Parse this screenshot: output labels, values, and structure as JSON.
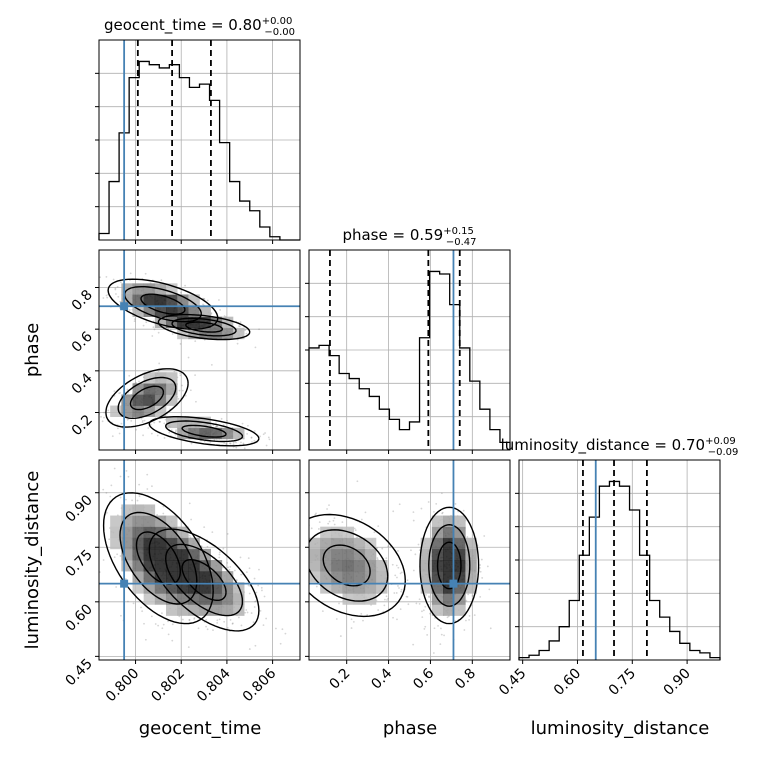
{
  "chart_data": {
    "type": "corner",
    "parameters": [
      "geocent_time",
      "phase",
      "luminosity_distance"
    ],
    "truths": {
      "geocent_time": 0.7995,
      "phase": 0.71,
      "luminosity_distance": 0.65
    },
    "colors": {
      "truth": "#4682b4",
      "hist": "#000000",
      "grid": "#b0b0b0",
      "scatter": "#888888"
    },
    "grid": true,
    "diagonal": [
      {
        "param": "geocent_time",
        "title_main": "geocent_time = 0.80",
        "title_sup": "+0.00",
        "title_sub": "−0.00",
        "xlim": [
          0.7984,
          0.8072
        ],
        "quantiles": [
          0.8001,
          0.8016,
          0.8033
        ],
        "bins": [
          0.7984,
          0.79884,
          0.79928,
          0.79972,
          0.80016,
          0.8006,
          0.80104,
          0.80148,
          0.80192,
          0.80236,
          0.8028,
          0.80324,
          0.80368,
          0.80412,
          0.80456,
          0.805,
          0.80544,
          0.80588,
          0.80632,
          0.80676,
          0.8072
        ],
        "counts": [
          2,
          18,
          33,
          50,
          55,
          54,
          53,
          54,
          50,
          47,
          48,
          43,
          30,
          18,
          12,
          9,
          4,
          1,
          0,
          0
        ]
      },
      {
        "param": "phase",
        "title_main": "phase = 0.59",
        "title_sup": "+0.15",
        "title_sub": "−0.47",
        "xlim": [
          0.02,
          0.98
        ],
        "quantiles": [
          0.12,
          0.59,
          0.74
        ],
        "bins": [
          0.02,
          0.068,
          0.116,
          0.164,
          0.212,
          0.26,
          0.308,
          0.356,
          0.404,
          0.452,
          0.5,
          0.548,
          0.596,
          0.644,
          0.692,
          0.74,
          0.788,
          0.836,
          0.884,
          0.932,
          0.98
        ],
        "counts": [
          40,
          41,
          37,
          30,
          28,
          24,
          21,
          16,
          12,
          8,
          11,
          44,
          70,
          69,
          57,
          40,
          27,
          16,
          8,
          3
        ]
      },
      {
        "param": "luminosity_distance",
        "title_main": "luminosity_distance = 0.70",
        "title_sup": "+0.09",
        "title_sub": "−0.09",
        "xlim": [
          0.44,
          0.99
        ],
        "quantiles": [
          0.615,
          0.7,
          0.79
        ],
        "bins": [
          0.44,
          0.4675,
          0.495,
          0.5225,
          0.55,
          0.5775,
          0.605,
          0.6325,
          0.66,
          0.6875,
          0.715,
          0.7425,
          0.77,
          0.7975,
          0.825,
          0.8525,
          0.88,
          0.9075,
          0.935,
          0.9625,
          0.99
        ],
        "counts": [
          1,
          2,
          4,
          8,
          14,
          25,
          44,
          60,
          73,
          75,
          73,
          63,
          44,
          25,
          18,
          12,
          7,
          4,
          3,
          1
        ]
      }
    ],
    "ticks": {
      "geocent_time": {
        "values": [
          0.8,
          0.802,
          0.804,
          0.806
        ],
        "labels": [
          "0.800",
          "0.802",
          "0.804",
          "0.806"
        ]
      },
      "phase": {
        "values": [
          0.2,
          0.4,
          0.6,
          0.8
        ],
        "labels": [
          "0.2",
          "0.4",
          "0.6",
          "0.8"
        ]
      },
      "luminosity_distance": {
        "values": [
          0.45,
          0.6,
          0.75,
          0.9
        ],
        "labels": [
          "0.45",
          "0.60",
          "0.75",
          "0.90"
        ]
      }
    },
    "axis_labels": {
      "x": [
        "geocent_time",
        "phase",
        "luminosity_distance"
      ],
      "y": [
        "phase",
        "luminosity_distance"
      ]
    }
  }
}
